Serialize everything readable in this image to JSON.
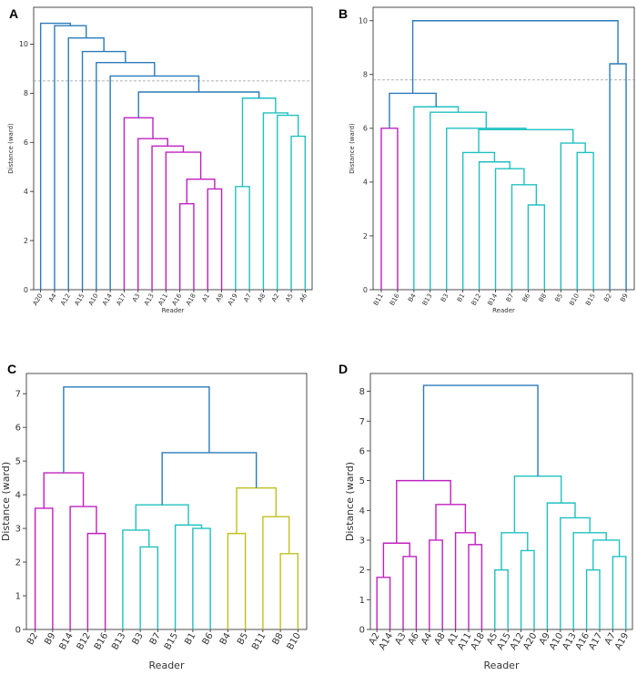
{
  "chart_data": [
    {
      "panel": "A",
      "type": "dendrogram",
      "xlabel": "Reader",
      "ylabel": "Distance (ward)",
      "ylim": [
        0,
        11.5
      ],
      "yticks": [
        0,
        2,
        4,
        6,
        8,
        10
      ],
      "threshold": 8.5,
      "leaves": [
        "A20",
        "A4",
        "A12",
        "A15",
        "A10",
        "A14",
        "A17",
        "A3",
        "A13",
        "A11",
        "A16",
        "A18",
        "A1",
        "A9",
        "A19",
        "A7",
        "A8",
        "A2",
        "A5",
        "A6"
      ],
      "links": [
        {
          "a": "A1",
          "b": "A9",
          "h": 4.1,
          "color": "#c020c0"
        },
        {
          "a": "A16",
          "b": "A18",
          "h": 3.5,
          "color": "#c020c0"
        },
        {
          "a": "A16|A18",
          "b": "A1|A9",
          "h": 4.5,
          "color": "#c020c0"
        },
        {
          "a": "A11",
          "b": "A16|A18|A1|A9",
          "h": 5.6,
          "color": "#c020c0"
        },
        {
          "a": "A13",
          "b": "A11|A16|A18|A1|A9",
          "h": 5.85,
          "color": "#c020c0"
        },
        {
          "a": "A3",
          "b": "A13|A11|A16|A18|A1|A9",
          "h": 6.15,
          "color": "#c020c0"
        },
        {
          "a": "A17",
          "b": "A3|A13|A11|A16|A18|A1|A9",
          "h": 7.0,
          "color": "#c020c0"
        },
        {
          "a": "A5",
          "b": "A6",
          "h": 6.25,
          "color": "#20c0c0"
        },
        {
          "a": "A2",
          "b": "A5|A6",
          "h": 7.1,
          "color": "#20c0c0"
        },
        {
          "a": "A8",
          "b": "A2|A5|A6",
          "h": 7.2,
          "color": "#20c0c0"
        },
        {
          "a": "A19",
          "b": "A7",
          "h": 4.2,
          "color": "#20c0c0"
        },
        {
          "a": "A19|A7",
          "b": "A8|A2|A5|A6",
          "h": 7.8,
          "color": "#20c0c0"
        },
        {
          "a": "A17|A3|A13|A11|A16|A18|A1|A9",
          "b": "A19|A7|A8|A2|A5|A6",
          "h": 8.05,
          "color": "#2b7bb9"
        },
        {
          "a": "A14",
          "b": "A17|A3|A13|A11|A16|A18|A1|A9|A19|A7|A8|A2|A5|A6",
          "h": 8.7,
          "color": "#2b7bb9"
        },
        {
          "a": "A10",
          "b": "A14|A17|A3|A13|A11|A16|A18|A1|A9|A19|A7|A8|A2|A5|A6",
          "h": 9.25,
          "color": "#2b7bb9"
        },
        {
          "a": "A15",
          "b": "A10|A14|A17|A3|A13|A11|A16|A18|A1|A9|A19|A7|A8|A2|A5|A6",
          "h": 9.7,
          "color": "#2b7bb9"
        },
        {
          "a": "A12",
          "b": "A15|A10|A14|A17|A3|A13|A11|A16|A18|A1|A9|A19|A7|A8|A2|A5|A6",
          "h": 10.25,
          "color": "#2b7bb9"
        },
        {
          "a": "A4",
          "b": "A12|A15|A10|A14|A17|A3|A13|A11|A16|A18|A1|A9|A19|A7|A8|A2|A5|A6",
          "h": 10.75,
          "color": "#2b7bb9"
        },
        {
          "a": "A20",
          "b": "A4|A12|A15|A10|A14|A17|A3|A13|A11|A16|A18|A1|A9|A19|A7|A8|A2|A5|A6",
          "h": 10.85,
          "color": "#2b7bb9"
        }
      ]
    },
    {
      "panel": "B",
      "type": "dendrogram",
      "xlabel": "Reader",
      "ylabel": "Distance (ward)",
      "ylim": [
        0,
        10.5
      ],
      "yticks": [
        0,
        2,
        4,
        6,
        8,
        10
      ],
      "threshold": 7.8,
      "leaves": [
        "B11",
        "B16",
        "B4",
        "B13",
        "B3",
        "B1",
        "B12",
        "B14",
        "B7",
        "B6",
        "B8",
        "B5",
        "B10",
        "B15",
        "B2",
        "B9"
      ],
      "links": [
        {
          "a": "B11",
          "b": "B16",
          "h": 6.0,
          "color": "#c020c0"
        },
        {
          "a": "B6",
          "b": "B8",
          "h": 3.15,
          "color": "#20c0c0"
        },
        {
          "a": "B7",
          "b": "B6|B8",
          "h": 3.9,
          "color": "#20c0c0"
        },
        {
          "a": "B14",
          "b": "B7|B6|B8",
          "h": 4.5,
          "color": "#20c0c0"
        },
        {
          "a": "B12",
          "b": "B14|B7|B6|B8",
          "h": 4.75,
          "color": "#20c0c0"
        },
        {
          "a": "B1",
          "b": "B12|B14|B7|B6|B8",
          "h": 5.1,
          "color": "#20c0c0"
        },
        {
          "a": "B10",
          "b": "B15",
          "h": 5.1,
          "color": "#20c0c0"
        },
        {
          "a": "B5",
          "b": "B10|B15",
          "h": 5.45,
          "color": "#20c0c0"
        },
        {
          "a": "B1|B12|B14|B7|B6|B8",
          "b": "B5|B10|B15",
          "h": 5.95,
          "color": "#20c0c0"
        },
        {
          "a": "B3",
          "b": "B1|B12|B14|B7|B6|B8|B5|B10|B15",
          "h": 6.0,
          "color": "#20c0c0"
        },
        {
          "a": "B13",
          "b": "B3|B1|B12|B14|B7|B6|B8|B5|B10|B15",
          "h": 6.6,
          "color": "#20c0c0"
        },
        {
          "a": "B4",
          "b": "B13|B3|B1|B12|B14|B7|B6|B8|B5|B10|B15",
          "h": 6.8,
          "color": "#20c0c0"
        },
        {
          "a": "B11|B16",
          "b": "B4|B13|B3|B1|B12|B14|B7|B6|B8|B5|B10|B15",
          "h": 7.3,
          "color": "#2b7bb9"
        },
        {
          "a": "B2",
          "b": "B9",
          "h": 8.4,
          "color": "#2b7bb9"
        },
        {
          "a": "B11|B16|B4|B13|B3|B1|B12|B14|B7|B6|B8|B5|B10|B15",
          "b": "B2|B9",
          "h": 10.0,
          "color": "#2b7bb9"
        }
      ]
    },
    {
      "panel": "C",
      "type": "dendrogram",
      "xlabel": "Reader",
      "ylabel": "Distance (ward)",
      "ylim": [
        0,
        7.6
      ],
      "yticks": [
        0,
        1,
        2,
        3,
        4,
        5,
        6,
        7
      ],
      "threshold": null,
      "leaves": [
        "B2",
        "B9",
        "B14",
        "B12",
        "B16",
        "B13",
        "B3",
        "B7",
        "B15",
        "B1",
        "B6",
        "B4",
        "B5",
        "B11",
        "B8",
        "B10"
      ],
      "links": [
        {
          "a": "B2",
          "b": "B9",
          "h": 3.6,
          "color": "#c020c0"
        },
        {
          "a": "B12",
          "b": "B16",
          "h": 2.85,
          "color": "#c020c0"
        },
        {
          "a": "B14",
          "b": "B12|B16",
          "h": 3.65,
          "color": "#c020c0"
        },
        {
          "a": "B2|B9",
          "b": "B14|B12|B16",
          "h": 4.65,
          "color": "#c020c0"
        },
        {
          "a": "B3",
          "b": "B7",
          "h": 2.45,
          "color": "#20c0c0"
        },
        {
          "a": "B13",
          "b": "B3|B7",
          "h": 2.95,
          "color": "#20c0c0"
        },
        {
          "a": "B1",
          "b": "B6",
          "h": 3.0,
          "color": "#20c0c0"
        },
        {
          "a": "B15",
          "b": "B1|B6",
          "h": 3.1,
          "color": "#20c0c0"
        },
        {
          "a": "B13|B3|B7",
          "b": "B15|B1|B6",
          "h": 3.7,
          "color": "#20c0c0"
        },
        {
          "a": "B4",
          "b": "B5",
          "h": 2.85,
          "color": "#c0c020"
        },
        {
          "a": "B8",
          "b": "B10",
          "h": 2.25,
          "color": "#c0c020"
        },
        {
          "a": "B11",
          "b": "B8|B10",
          "h": 3.35,
          "color": "#c0c020"
        },
        {
          "a": "B4|B5",
          "b": "B11|B8|B10",
          "h": 4.2,
          "color": "#c0c020"
        },
        {
          "a": "B13|B3|B7|B15|B1|B6",
          "b": "B4|B5|B11|B8|B10",
          "h": 5.25,
          "color": "#2b7bb9"
        },
        {
          "a": "B2|B9|B14|B12|B16",
          "b": "B13|B3|B7|B15|B1|B6|B4|B5|B11|B8|B10",
          "h": 7.2,
          "color": "#2b7bb9"
        }
      ]
    },
    {
      "panel": "D",
      "type": "dendrogram",
      "xlabel": "Reader",
      "ylabel": "Distance (ward)",
      "ylim": [
        0,
        8.6
      ],
      "yticks": [
        0,
        1,
        2,
        3,
        4,
        5,
        6,
        7,
        8
      ],
      "threshold": null,
      "leaves": [
        "A2",
        "A14",
        "A3",
        "A6",
        "A4",
        "A8",
        "A1",
        "A11",
        "A18",
        "A5",
        "A15",
        "A12",
        "A20",
        "A9",
        "A10",
        "A13",
        "A16",
        "A17",
        "A7",
        "A19"
      ],
      "links": [
        {
          "a": "A2",
          "b": "A14",
          "h": 1.75,
          "color": "#c020c0"
        },
        {
          "a": "A3",
          "b": "A6",
          "h": 2.45,
          "color": "#c020c0"
        },
        {
          "a": "A2|A14",
          "b": "A3|A6",
          "h": 2.9,
          "color": "#c020c0"
        },
        {
          "a": "A4",
          "b": "A8",
          "h": 3.0,
          "color": "#c020c0"
        },
        {
          "a": "A11",
          "b": "A18",
          "h": 2.85,
          "color": "#c020c0"
        },
        {
          "a": "A1",
          "b": "A11|A18",
          "h": 3.25,
          "color": "#c020c0"
        },
        {
          "a": "A4|A8",
          "b": "A1|A11|A18",
          "h": 4.2,
          "color": "#c020c0"
        },
        {
          "a": "A2|A14|A3|A6",
          "b": "A4|A8|A1|A11|A18",
          "h": 5.0,
          "color": "#c020c0"
        },
        {
          "a": "A5",
          "b": "A15",
          "h": 2.0,
          "color": "#20c0c0"
        },
        {
          "a": "A12",
          "b": "A20",
          "h": 2.65,
          "color": "#20c0c0"
        },
        {
          "a": "A5|A15",
          "b": "A12|A20",
          "h": 3.25,
          "color": "#20c0c0"
        },
        {
          "a": "A16",
          "b": "A17",
          "h": 2.0,
          "color": "#20c0c0"
        },
        {
          "a": "A7",
          "b": "A19",
          "h": 2.45,
          "color": "#20c0c0"
        },
        {
          "a": "A16|A17",
          "b": "A7|A19",
          "h": 3.0,
          "color": "#20c0c0"
        },
        {
          "a": "A13",
          "b": "A16|A17|A7|A19",
          "h": 3.25,
          "color": "#20c0c0"
        },
        {
          "a": "A10",
          "b": "A13|A16|A17|A7|A19",
          "h": 3.75,
          "color": "#20c0c0"
        },
        {
          "a": "A9",
          "b": "A10|A13|A16|A17|A7|A19",
          "h": 4.25,
          "color": "#20c0c0"
        },
        {
          "a": "A5|A15|A12|A20",
          "b": "A9|A10|A13|A16|A17|A7|A19",
          "h": 5.15,
          "color": "#20c0c0"
        },
        {
          "a": "A2|A14|A3|A6|A4|A8|A1|A11|A18",
          "b": "A5|A15|A12|A20|A9|A10|A13|A16|A17|A7|A19",
          "h": 8.2,
          "color": "#2b7bb9"
        }
      ]
    }
  ]
}
